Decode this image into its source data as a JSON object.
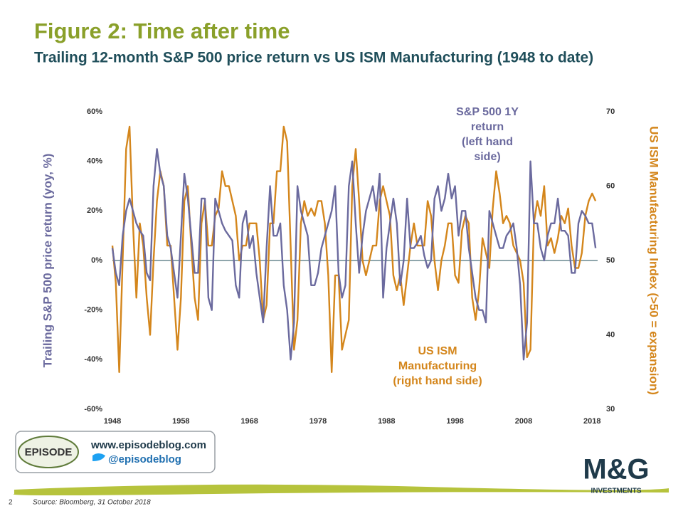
{
  "header": {
    "title": "Figure 2: Time after time",
    "subtitle": "Trailing 12-month S&P 500 price return vs US ISM Manufacturing (1948 to date)"
  },
  "chart_data": {
    "type": "line",
    "y_label": "Trailing  S&P 500 price return (yoy, %)",
    "y2_label": "US ISM Manufacturing Index (>50 = expansion)",
    "annotations": [
      [
        "S&P 500 1Y",
        "return",
        "(left hand",
        "side)"
      ],
      [
        "US ISM",
        "Manufacturing",
        "(right hand side)"
      ]
    ],
    "xlim": [
      1948,
      2018.8
    ],
    "xticks": [
      1948,
      1958,
      1968,
      1978,
      1988,
      1998,
      2008,
      2018
    ],
    "ylim": [
      -60,
      60
    ],
    "yticks": [
      {
        "value": -60,
        "label": "-60%"
      },
      {
        "value": -40,
        "label": "-40%"
      },
      {
        "value": -20,
        "label": "-20%"
      },
      {
        "value": 0,
        "label": "0%"
      },
      {
        "value": 20,
        "label": "20%"
      },
      {
        "value": 40,
        "label": "40%"
      },
      {
        "value": 60,
        "label": "60%"
      }
    ],
    "y2lim": [
      30,
      70
    ],
    "y2ticks": [
      30,
      40,
      50,
      60,
      70
    ],
    "x": [
      1948,
      1948.5,
      1949,
      1949.5,
      1950,
      1950.5,
      1951,
      1951.5,
      1952,
      1952.5,
      1953,
      1953.5,
      1954,
      1954.5,
      1955,
      1955.5,
      1956,
      1956.5,
      1957,
      1957.5,
      1958,
      1958.5,
      1959,
      1959.5,
      1960,
      1960.5,
      1961,
      1961.5,
      1962,
      1962.5,
      1963,
      1963.5,
      1964,
      1964.5,
      1965,
      1965.5,
      1966,
      1966.5,
      1967,
      1967.5,
      1968,
      1968.5,
      1969,
      1969.5,
      1970,
      1970.5,
      1971,
      1971.5,
      1972,
      1972.5,
      1973,
      1973.5,
      1974,
      1974.5,
      1975,
      1975.5,
      1976,
      1976.5,
      1977,
      1977.5,
      1978,
      1978.5,
      1979,
      1979.5,
      1980,
      1980.5,
      1981,
      1981.5,
      1982,
      1982.5,
      1983,
      1983.5,
      1984,
      1984.5,
      1985,
      1985.5,
      1986,
      1986.5,
      1987,
      1987.5,
      1988,
      1988.5,
      1989,
      1989.5,
      1990,
      1990.5,
      1991,
      1991.5,
      1992,
      1992.5,
      1993,
      1993.5,
      1994,
      1994.5,
      1995,
      1995.5,
      1996,
      1996.5,
      1997,
      1997.5,
      1998,
      1998.5,
      1999,
      1999.5,
      2000,
      2000.5,
      2001,
      2001.5,
      2002,
      2002.5,
      2003,
      2003.5,
      2004,
      2004.5,
      2005,
      2005.5,
      2006,
      2006.5,
      2007,
      2007.5,
      2008,
      2008.5,
      2009,
      2009.5,
      2010,
      2010.5,
      2011,
      2011.5,
      2012,
      2012.5,
      2013,
      2013.5,
      2014,
      2014.5,
      2015,
      2015.5,
      2016,
      2016.5,
      2017,
      2017.5,
      2018,
      2018.5
    ],
    "series": [
      {
        "name": "S&P 500 1Y return",
        "color": "#6b6a9e",
        "axis": "y",
        "values": [
          5,
          -5,
          -10,
          10,
          20,
          25,
          20,
          15,
          12,
          10,
          -5,
          -8,
          30,
          45,
          35,
          30,
          10,
          5,
          -5,
          -15,
          10,
          35,
          25,
          10,
          -5,
          -5,
          25,
          25,
          -15,
          -20,
          25,
          20,
          15,
          12,
          10,
          8,
          -10,
          -15,
          15,
          20,
          5,
          10,
          -5,
          -15,
          -25,
          5,
          30,
          10,
          10,
          15,
          -10,
          -20,
          -40,
          -25,
          30,
          20,
          15,
          10,
          -10,
          -10,
          -5,
          5,
          10,
          15,
          20,
          30,
          -5,
          -15,
          -10,
          30,
          40,
          15,
          -5,
          10,
          20,
          25,
          30,
          20,
          35,
          -15,
          5,
          15,
          25,
          15,
          -10,
          0,
          25,
          5,
          5,
          7,
          10,
          2,
          -3,
          0,
          25,
          30,
          20,
          25,
          35,
          25,
          30,
          10,
          20,
          20,
          5,
          -5,
          -15,
          -20,
          -20,
          -25,
          20,
          15,
          10,
          5,
          5,
          10,
          12,
          15,
          5,
          -10,
          -40,
          -25,
          40,
          15,
          15,
          5,
          0,
          10,
          15,
          15,
          25,
          12,
          12,
          10,
          -5,
          -5,
          15,
          20,
          18,
          15,
          15,
          5
        ]
      },
      {
        "name": "US ISM Manufacturing",
        "color": "#d4861c",
        "axis": "y2",
        "values": [
          52,
          47,
          35,
          50,
          65,
          68,
          55,
          45,
          55,
          52,
          45,
          40,
          50,
          58,
          62,
          60,
          52,
          52,
          45,
          38,
          45,
          58,
          60,
          52,
          45,
          42,
          55,
          58,
          52,
          52,
          56,
          57,
          62,
          60,
          60,
          58,
          56,
          50,
          52,
          52,
          55,
          55,
          55,
          50,
          42,
          44,
          55,
          55,
          62,
          62,
          68,
          66,
          52,
          38,
          42,
          55,
          58,
          56,
          57,
          56,
          58,
          58,
          55,
          48,
          35,
          48,
          48,
          38,
          40,
          42,
          60,
          65,
          58,
          50,
          48,
          50,
          52,
          52,
          58,
          60,
          58,
          56,
          48,
          46,
          48,
          44,
          48,
          52,
          55,
          52,
          52,
          52,
          58,
          56,
          50,
          46,
          50,
          52,
          55,
          55,
          48,
          47,
          54,
          56,
          55,
          45,
          42,
          46,
          53,
          51,
          49,
          57,
          62,
          59,
          55,
          56,
          55,
          52,
          51,
          50,
          47,
          37,
          38,
          55,
          58,
          56,
          60,
          52,
          53,
          51,
          53,
          56,
          55,
          57,
          52,
          49,
          49,
          51,
          56,
          58,
          59,
          58
        ]
      }
    ]
  },
  "footer": {
    "url": "www.episodeblog.com",
    "handle": "@episodeblog",
    "episode": "EPISODE",
    "brand": "M&G",
    "brand_sub": "INVESTMENTS",
    "page": "2",
    "source": "Source: Bloomberg, 31 October 2018"
  }
}
